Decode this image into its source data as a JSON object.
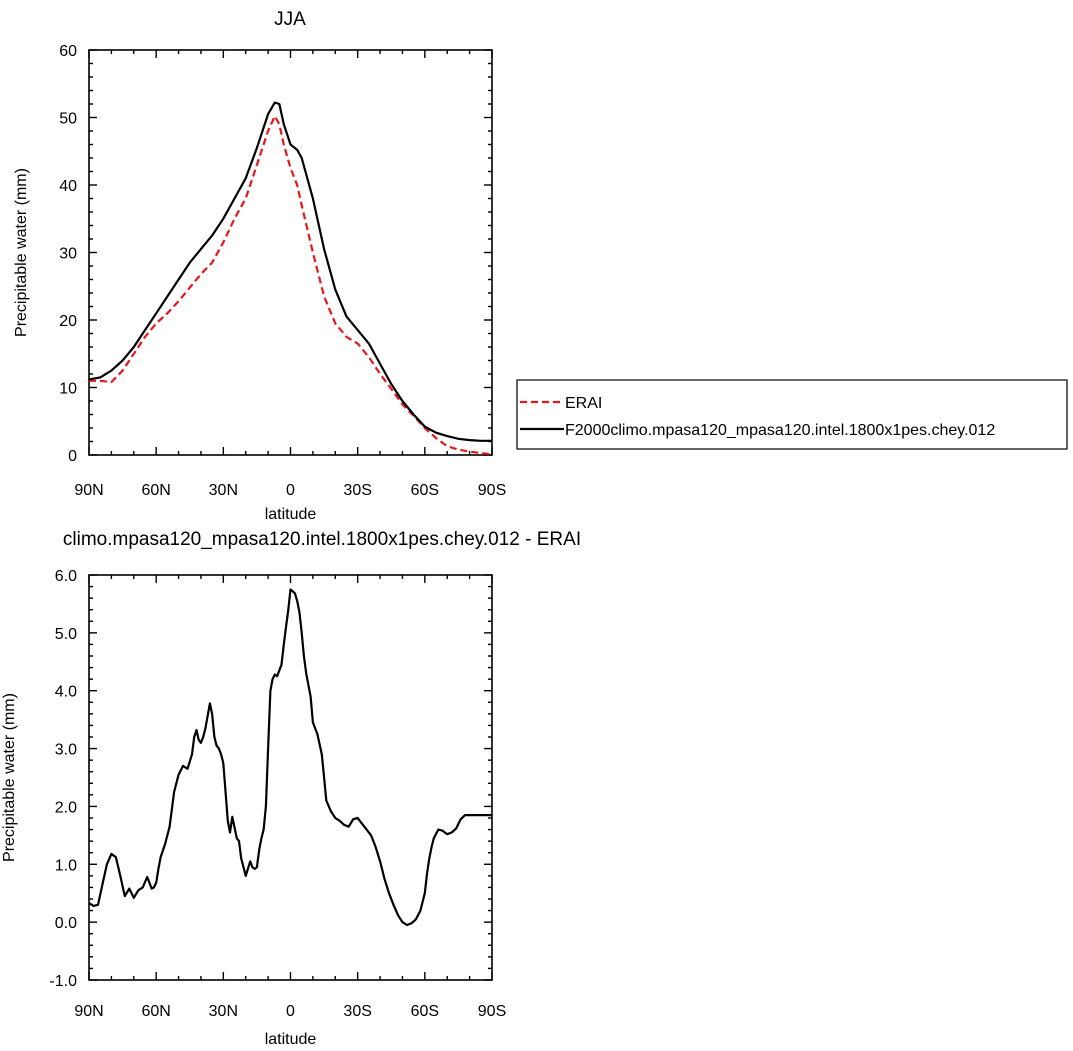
{
  "chart_data": [
    {
      "type": "line",
      "title": "JJA",
      "xlabel": "latitude",
      "ylabel": "Precipitable water (mm)",
      "xlim": [
        -90,
        90
      ],
      "ylim": [
        0,
        60
      ],
      "x_ticks": [
        {
          "value": -90,
          "label": "90N"
        },
        {
          "value": -60,
          "label": "60N"
        },
        {
          "value": -30,
          "label": "30N"
        },
        {
          "value": 0,
          "label": "0"
        },
        {
          "value": 30,
          "label": "30S"
        },
        {
          "value": 60,
          "label": "60S"
        },
        {
          "value": 90,
          "label": "90S"
        }
      ],
      "y_ticks": [
        {
          "value": 0,
          "label": "0"
        },
        {
          "value": 10,
          "label": "10"
        },
        {
          "value": 20,
          "label": "20"
        },
        {
          "value": 30,
          "label": "30"
        },
        {
          "value": 40,
          "label": "40"
        },
        {
          "value": 50,
          "label": "50"
        },
        {
          "value": 60,
          "label": "60"
        }
      ],
      "grid": false,
      "legend_position": "right",
      "series": [
        {
          "name": "ERAI",
          "color": "#e8161b",
          "dash": "dashed",
          "x": [
            -90,
            -85,
            -80,
            -75,
            -70,
            -65,
            -60,
            -55,
            -50,
            -45,
            -40,
            -35,
            -30,
            -25,
            -20,
            -15,
            -10,
            -7,
            -5,
            -3,
            0,
            3,
            5,
            10,
            15,
            20,
            25,
            30,
            35,
            40,
            45,
            50,
            55,
            60,
            65,
            70,
            75,
            80,
            85,
            90
          ],
          "values": [
            11,
            11,
            10.8,
            12.5,
            15,
            17.5,
            19.5,
            21,
            22.8,
            24.8,
            26.8,
            28.5,
            31.5,
            35,
            38,
            43,
            48,
            50.2,
            49,
            46,
            42.5,
            40,
            37,
            30,
            23.5,
            19.5,
            17.5,
            16.5,
            14.5,
            12,
            9.8,
            7.5,
            5.8,
            4,
            2.5,
            1.3,
            0.8,
            0.5,
            0.3,
            0.1
          ]
        },
        {
          "name": "F2000climo.mpasa120_mpasa120.intel.1800x1pes.chey.012",
          "color": "#000000",
          "dash": "solid",
          "x": [
            -90,
            -85,
            -80,
            -75,
            -70,
            -65,
            -60,
            -55,
            -50,
            -45,
            -40,
            -35,
            -30,
            -25,
            -20,
            -15,
            -10,
            -7,
            -5,
            -3,
            0,
            3,
            5,
            10,
            15,
            20,
            25,
            30,
            35,
            40,
            45,
            50,
            55,
            60,
            65,
            70,
            75,
            80,
            85,
            90
          ],
          "values": [
            11.2,
            11.5,
            12.5,
            14,
            16,
            18.5,
            21,
            23.5,
            26,
            28.5,
            30.5,
            32.5,
            35,
            38,
            41,
            45.5,
            50.5,
            52.2,
            52,
            49,
            46,
            45.2,
            44,
            38,
            30.5,
            24.5,
            20.5,
            18.5,
            16.5,
            13.5,
            10.5,
            8,
            6,
            4.2,
            3.3,
            2.8,
            2.4,
            2.2,
            2.1,
            2.1
          ]
        }
      ]
    },
    {
      "type": "line",
      "title": "climo.mpasa120_mpasa120.intel.1800x1pes.chey.012 - ERAI",
      "xlabel": "latitude",
      "ylabel": "Precipitable water (mm)",
      "xlim": [
        -90,
        90
      ],
      "ylim": [
        -1,
        6
      ],
      "x_ticks": [
        {
          "value": -90,
          "label": "90N"
        },
        {
          "value": -60,
          "label": "60N"
        },
        {
          "value": -30,
          "label": "30N"
        },
        {
          "value": 0,
          "label": "0"
        },
        {
          "value": 30,
          "label": "30S"
        },
        {
          "value": 60,
          "label": "60S"
        },
        {
          "value": 90,
          "label": "90S"
        }
      ],
      "y_ticks": [
        {
          "value": -1,
          "label": "-1.0"
        },
        {
          "value": 0,
          "label": "0.0"
        },
        {
          "value": 1,
          "label": "1.0"
        },
        {
          "value": 2,
          "label": "2.0"
        },
        {
          "value": 3,
          "label": "3.0"
        },
        {
          "value": 4,
          "label": "4.0"
        },
        {
          "value": 5,
          "label": "5.0"
        },
        {
          "value": 6,
          "label": "6.0"
        }
      ],
      "grid": false,
      "series": [
        {
          "color": "#000000",
          "dash": "solid",
          "x": [
            -90,
            -88,
            -86,
            -84,
            -82,
            -80,
            -78,
            -76,
            -74,
            -72,
            -70,
            -68,
            -66,
            -64,
            -62,
            -61,
            -60,
            -59,
            -58,
            -56,
            -54,
            -52,
            -50,
            -48,
            -46,
            -44,
            -43,
            -42,
            -41,
            -40,
            -39,
            -38,
            -36,
            -35,
            -34,
            -33,
            -32,
            -31,
            -30,
            -28,
            -27,
            -26,
            -24,
            -23,
            -22,
            -21,
            -20,
            -18,
            -17,
            -16,
            -15,
            -14,
            -13,
            -12,
            -11,
            -10,
            -9,
            -8,
            -7,
            -6,
            -5,
            -4,
            -3,
            -2,
            -1,
            0,
            1,
            2,
            3,
            4,
            5,
            6,
            7,
            8,
            9,
            10,
            12,
            14,
            15,
            16,
            18,
            20,
            22,
            24,
            26,
            28,
            30,
            32,
            34,
            36,
            38,
            40,
            42,
            44,
            46,
            48,
            50,
            52,
            54,
            56,
            58,
            60,
            61,
            62,
            63,
            64,
            66,
            68,
            70,
            72,
            74,
            76,
            78,
            80,
            82,
            84,
            86,
            88,
            90
          ],
          "values": [
            0.33,
            0.28,
            0.3,
            0.65,
            1.0,
            1.18,
            1.12,
            0.8,
            0.45,
            0.58,
            0.42,
            0.55,
            0.6,
            0.78,
            0.58,
            0.6,
            0.68,
            0.92,
            1.12,
            1.35,
            1.65,
            2.25,
            2.55,
            2.7,
            2.65,
            2.9,
            3.2,
            3.32,
            3.15,
            3.1,
            3.2,
            3.35,
            3.78,
            3.6,
            3.2,
            3.05,
            3.0,
            2.9,
            2.75,
            1.75,
            1.55,
            1.82,
            1.45,
            1.4,
            1.1,
            0.95,
            0.8,
            1.05,
            0.95,
            0.92,
            0.95,
            1.25,
            1.45,
            1.6,
            2.0,
            3.0,
            4.0,
            4.2,
            4.28,
            4.25,
            4.35,
            4.45,
            4.8,
            5.1,
            5.4,
            5.75,
            5.72,
            5.68,
            5.55,
            5.35,
            5.0,
            4.6,
            4.3,
            4.1,
            3.9,
            3.45,
            3.25,
            2.9,
            2.5,
            2.1,
            1.92,
            1.8,
            1.75,
            1.68,
            1.65,
            1.78,
            1.8,
            1.7,
            1.6,
            1.5,
            1.3,
            1.05,
            0.75,
            0.5,
            0.3,
            0.12,
            0.0,
            -0.05,
            -0.02,
            0.05,
            0.2,
            0.5,
            0.85,
            1.1,
            1.3,
            1.45,
            1.6,
            1.58,
            1.52,
            1.55,
            1.62,
            1.78,
            1.85,
            1.85,
            1.85,
            1.85,
            1.85,
            1.85,
            1.85
          ]
        }
      ]
    }
  ]
}
